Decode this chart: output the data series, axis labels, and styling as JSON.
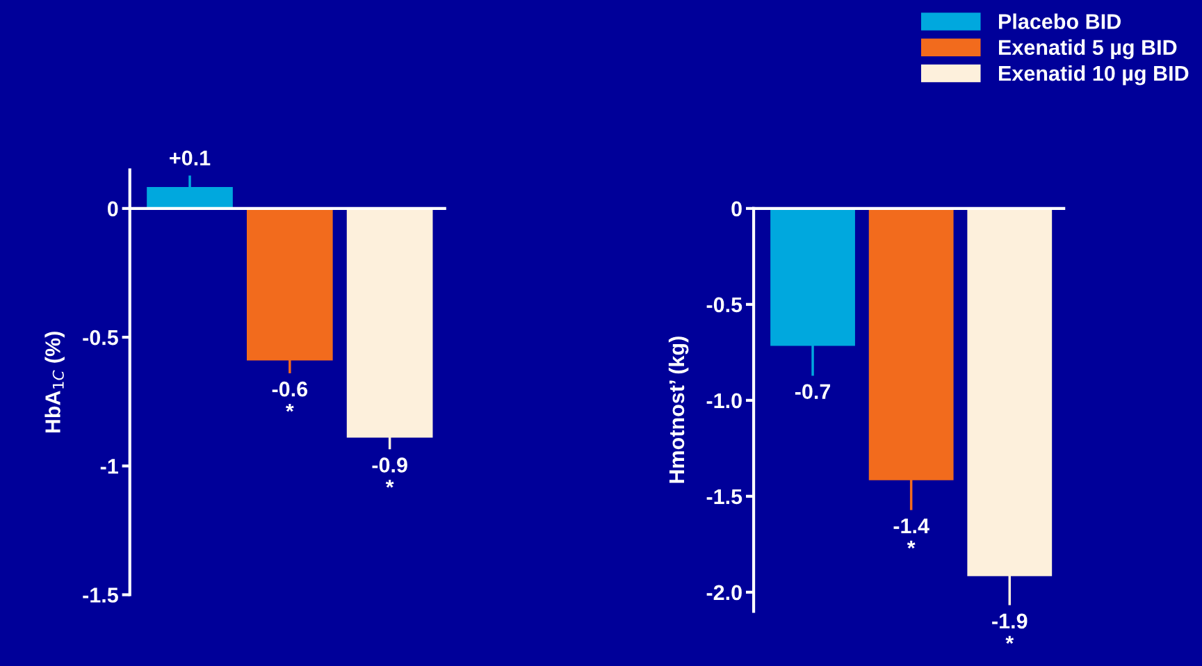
{
  "chart_data": [
    {
      "type": "bar",
      "ylabel": "HbA$_{1C}$ (%)",
      "categories": [
        null
      ],
      "ylim": [
        -1.5,
        0.15
      ],
      "yticks": [
        0,
        -0.5,
        -1,
        -1.5
      ],
      "legend": "top right",
      "series": [
        {
          "name": "Placebo BID",
          "color": "#00a8de",
          "values": [
            0.083
          ],
          "errors": [
            0.045
          ],
          "value_labels": [
            "+0.1"
          ]
        },
        {
          "name": "Exenatid 5 µg BID",
          "color": "#f26b1d",
          "values": [
            -0.59
          ],
          "errors": [
            0.05
          ],
          "value_labels": [
            "-0.6\n*"
          ]
        },
        {
          "name": "Exenatid 10 µg BID",
          "color": "#fdf0dc",
          "values": [
            -0.89
          ],
          "errors": [
            0.045
          ],
          "value_labels": [
            "-0.9\n*"
          ]
        }
      ]
    },
    {
      "type": "bar",
      "ylabel": "Hmotnost’ (kg)",
      "categories": [
        null
      ],
      "ylim": [
        -2.1,
        0
      ],
      "yticks": [
        0,
        -0.5,
        {
          "value": -1,
          "label": "-1.0"
        },
        -1.5,
        {
          "value": -2,
          "label": "-2.0"
        }
      ],
      "series": [
        {
          "color": "#00a8de",
          "values": [
            -0.716
          ],
          "errors": [
            0.156
          ],
          "value_labels": [
            "-0.7"
          ]
        },
        {
          "color": "#f26b1d",
          "values": [
            -1.416
          ],
          "errors": [
            0.156
          ],
          "value_labels": [
            "-1.4\n*"
          ]
        },
        {
          "color": "#fdf0dc",
          "values": [
            -1.916
          ],
          "errors": [
            0.152
          ],
          "value_labels": [
            "-1.9\n*"
          ]
        }
      ]
    }
  ]
}
